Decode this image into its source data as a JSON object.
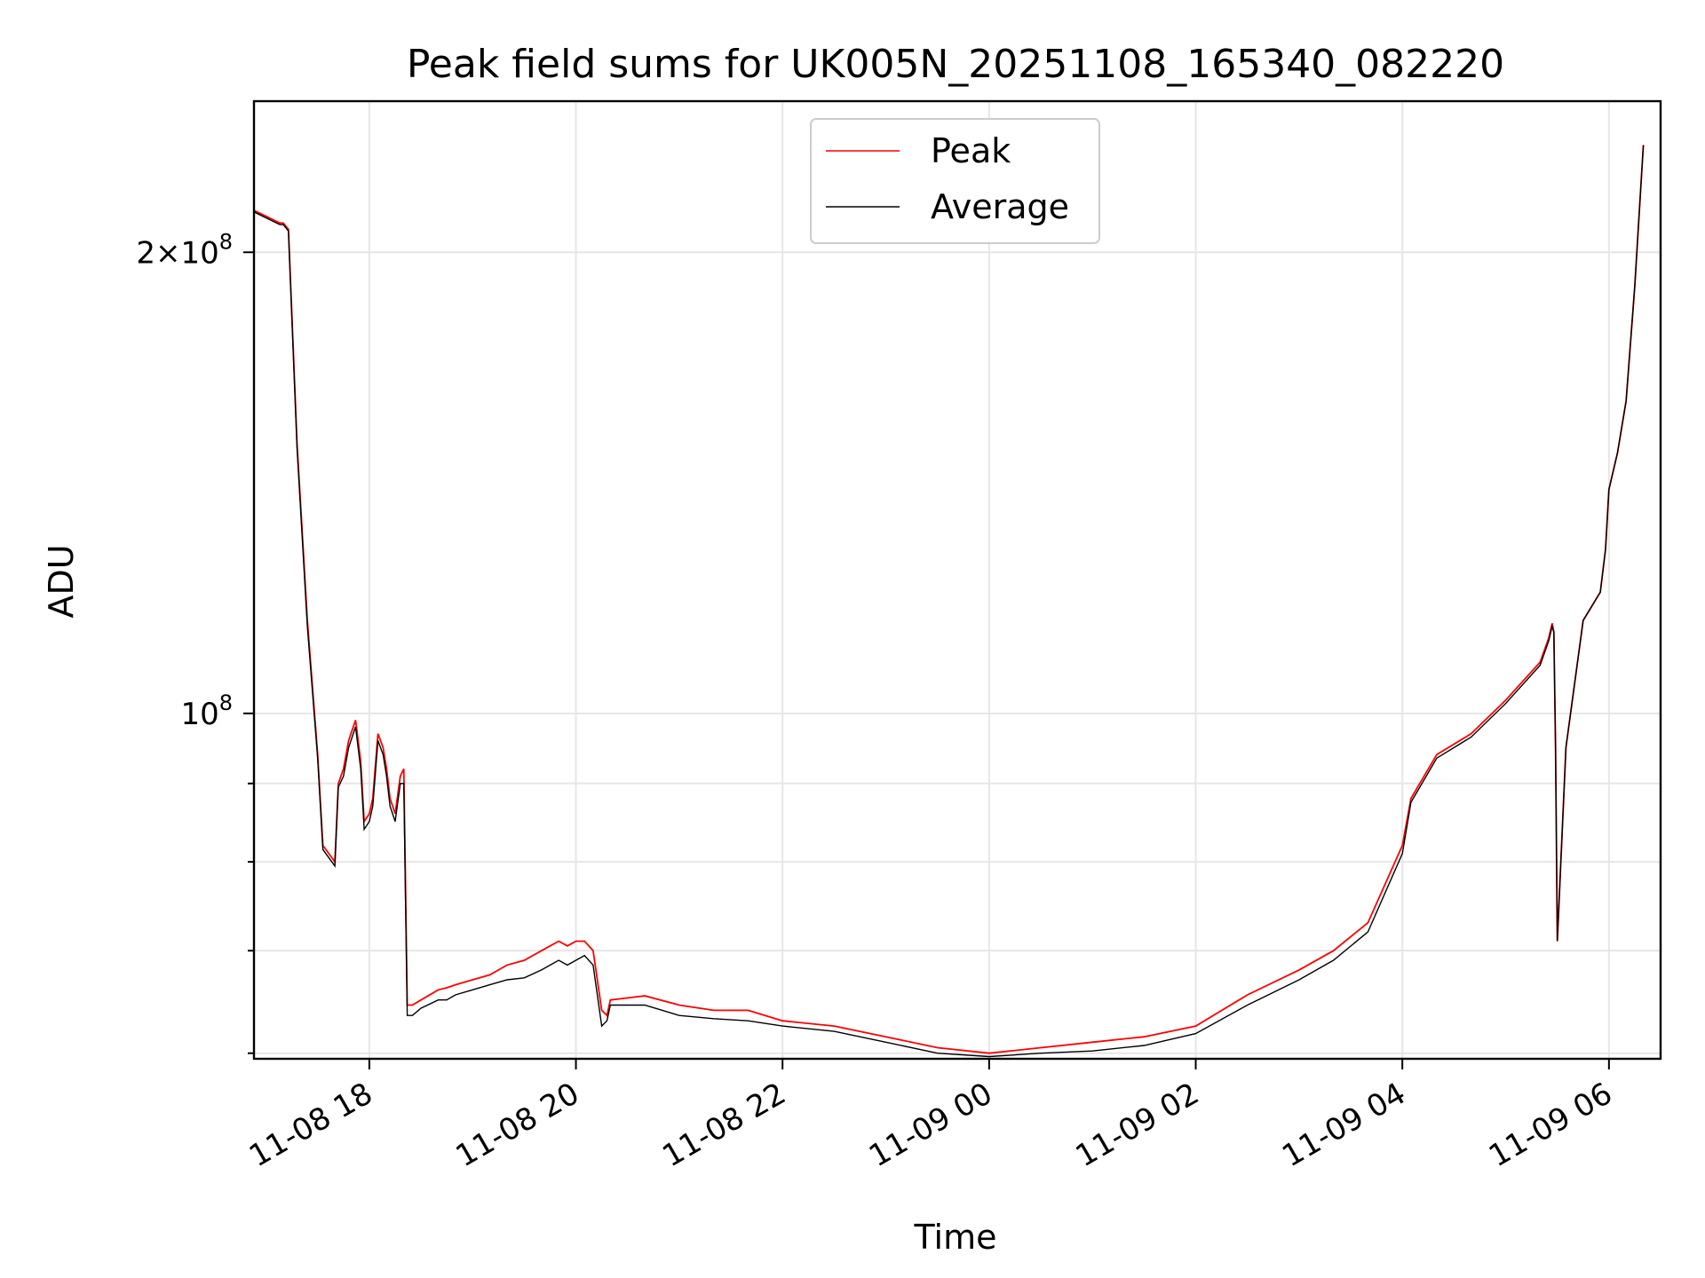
{
  "chart_data": {
    "type": "line",
    "title": "Peak field sums for UK005N_20251108_165340_082220",
    "xlabel": "Time",
    "ylabel": "ADU",
    "yscale": "log",
    "grid": true,
    "legend_position": "top-center",
    "x_range": [
      "2025-11-08T16:53",
      "2025-11-09T06:30"
    ],
    "ylim": [
      59500000,
      251000000
    ],
    "x_ticks": [
      {
        "value": "2025-11-08T18:00",
        "label": "11-08 18"
      },
      {
        "value": "2025-11-08T20:00",
        "label": "11-08 20"
      },
      {
        "value": "2025-11-08T22:00",
        "label": "11-08 22"
      },
      {
        "value": "2025-11-09T00:00",
        "label": "11-09 00"
      },
      {
        "value": "2025-11-09T02:00",
        "label": "11-09 02"
      },
      {
        "value": "2025-11-09T04:00",
        "label": "11-09 04"
      },
      {
        "value": "2025-11-09T06:00",
        "label": "11-09 06"
      }
    ],
    "y_ticks": [
      {
        "value": 200000000,
        "mantissa": "2",
        "times": "×",
        "base": "10",
        "exponent": "8"
      },
      {
        "value": 100000000,
        "mantissa": "",
        "times": "",
        "base": "10",
        "exponent": "8"
      }
    ],
    "y_minor_ticks": [
      60000000,
      70000000,
      80000000,
      90000000
    ],
    "series": [
      {
        "name": "Peak",
        "color": "#ff0000",
        "x": [
          "2025-11-08T16:53",
          "2025-11-08T17:08",
          "2025-11-08T17:10",
          "2025-11-08T17:13",
          "2025-11-08T17:18",
          "2025-11-08T17:24",
          "2025-11-08T17:30",
          "2025-11-08T17:33",
          "2025-11-08T17:40",
          "2025-11-08T17:42",
          "2025-11-08T17:45",
          "2025-11-08T17:48",
          "2025-11-08T17:52",
          "2025-11-08T17:55",
          "2025-11-08T17:57",
          "2025-11-08T18:00",
          "2025-11-08T18:02",
          "2025-11-08T18:05",
          "2025-11-08T18:08",
          "2025-11-08T18:10",
          "2025-11-08T18:12",
          "2025-11-08T18:15",
          "2025-11-08T18:18",
          "2025-11-08T18:20",
          "2025-11-08T18:22",
          "2025-11-08T18:25",
          "2025-11-08T18:30",
          "2025-11-08T18:40",
          "2025-11-08T18:45",
          "2025-11-08T18:50",
          "2025-11-08T19:00",
          "2025-11-08T19:10",
          "2025-11-08T19:20",
          "2025-11-08T19:30",
          "2025-11-08T19:40",
          "2025-11-08T19:45",
          "2025-11-08T19:50",
          "2025-11-08T19:55",
          "2025-11-08T20:00",
          "2025-11-08T20:05",
          "2025-11-08T20:10",
          "2025-11-08T20:15",
          "2025-11-08T20:18",
          "2025-11-08T20:20",
          "2025-11-08T20:30",
          "2025-11-08T20:40",
          "2025-11-08T21:00",
          "2025-11-08T21:20",
          "2025-11-08T21:40",
          "2025-11-08T22:00",
          "2025-11-08T22:30",
          "2025-11-08T23:00",
          "2025-11-08T23:30",
          "2025-11-09T00:00",
          "2025-11-09T00:30",
          "2025-11-09T01:00",
          "2025-11-09T01:30",
          "2025-11-09T02:00",
          "2025-11-09T02:30",
          "2025-11-09T03:00",
          "2025-11-09T03:20",
          "2025-11-09T03:40",
          "2025-11-09T04:00",
          "2025-11-09T04:05",
          "2025-11-09T04:20",
          "2025-11-09T04:40",
          "2025-11-09T05:00",
          "2025-11-09T05:20",
          "2025-11-09T05:25",
          "2025-11-09T05:27",
          "2025-11-09T05:28",
          "2025-11-09T05:29",
          "2025-11-09T05:30",
          "2025-11-09T05:35",
          "2025-11-09T05:45",
          "2025-11-09T05:55",
          "2025-11-09T05:58",
          "2025-11-09T06:00",
          "2025-11-09T06:05",
          "2025-11-09T06:10",
          "2025-11-09T06:15",
          "2025-11-09T06:20"
        ],
        "values": [
          213000000,
          209000000,
          209000000,
          207000000,
          150000000,
          115000000,
          94000000,
          82000000,
          80000000,
          90000000,
          92000000,
          96000000,
          99000000,
          93000000,
          85000000,
          86000000,
          88000000,
          97000000,
          95000000,
          92000000,
          88000000,
          86000000,
          91000000,
          92000000,
          64500000,
          64500000,
          65000000,
          66000000,
          66200000,
          66500000,
          67000000,
          67500000,
          68500000,
          69000000,
          70000000,
          70500000,
          71000000,
          70500000,
          71000000,
          71000000,
          70000000,
          64000000,
          63500000,
          65000000,
          65200000,
          65400000,
          64500000,
          64000000,
          64000000,
          63000000,
          62500000,
          61500000,
          60500000,
          60000000,
          60500000,
          61000000,
          61500000,
          62500000,
          65500000,
          68000000,
          70000000,
          73000000,
          82000000,
          88000000,
          94000000,
          97000000,
          102000000,
          108000000,
          112000000,
          114500000,
          113000000,
          95000000,
          71000000,
          95000000,
          115000000,
          120000000,
          128000000,
          140000000,
          148000000,
          160000000,
          190000000,
          235000000
        ]
      },
      {
        "name": "Average",
        "color": "#000000",
        "x": [
          "2025-11-08T16:53",
          "2025-11-08T17:08",
          "2025-11-08T17:10",
          "2025-11-08T17:13",
          "2025-11-08T17:18",
          "2025-11-08T17:24",
          "2025-11-08T17:30",
          "2025-11-08T17:33",
          "2025-11-08T17:40",
          "2025-11-08T17:42",
          "2025-11-08T17:45",
          "2025-11-08T17:48",
          "2025-11-08T17:52",
          "2025-11-08T17:55",
          "2025-11-08T17:57",
          "2025-11-08T18:00",
          "2025-11-08T18:02",
          "2025-11-08T18:05",
          "2025-11-08T18:08",
          "2025-11-08T18:10",
          "2025-11-08T18:12",
          "2025-11-08T18:15",
          "2025-11-08T18:18",
          "2025-11-08T18:20",
          "2025-11-08T18:22",
          "2025-11-08T18:25",
          "2025-11-08T18:30",
          "2025-11-08T18:40",
          "2025-11-08T18:45",
          "2025-11-08T18:50",
          "2025-11-08T19:00",
          "2025-11-08T19:10",
          "2025-11-08T19:20",
          "2025-11-08T19:30",
          "2025-11-08T19:40",
          "2025-11-08T19:45",
          "2025-11-08T19:50",
          "2025-11-08T19:55",
          "2025-11-08T20:00",
          "2025-11-08T20:05",
          "2025-11-08T20:10",
          "2025-11-08T20:15",
          "2025-11-08T20:18",
          "2025-11-08T20:20",
          "2025-11-08T20:30",
          "2025-11-08T20:40",
          "2025-11-08T21:00",
          "2025-11-08T21:20",
          "2025-11-08T21:40",
          "2025-11-08T22:00",
          "2025-11-08T22:30",
          "2025-11-08T23:00",
          "2025-11-08T23:30",
          "2025-11-09T00:00",
          "2025-11-09T00:30",
          "2025-11-09T01:00",
          "2025-11-09T01:30",
          "2025-11-09T02:00",
          "2025-11-09T02:30",
          "2025-11-09T03:00",
          "2025-11-09T03:20",
          "2025-11-09T03:40",
          "2025-11-09T04:00",
          "2025-11-09T04:05",
          "2025-11-09T04:20",
          "2025-11-09T04:40",
          "2025-11-09T05:00",
          "2025-11-09T05:20",
          "2025-11-09T05:25",
          "2025-11-09T05:27",
          "2025-11-09T05:28",
          "2025-11-09T05:29",
          "2025-11-09T05:30",
          "2025-11-09T05:35",
          "2025-11-09T05:45",
          "2025-11-09T05:55",
          "2025-11-09T05:58",
          "2025-11-09T06:00",
          "2025-11-09T06:05",
          "2025-11-09T06:10",
          "2025-11-09T06:15",
          "2025-11-09T06:20"
        ],
        "values": [
          212500000,
          208500000,
          208500000,
          206500000,
          149000000,
          114000000,
          93500000,
          81500000,
          79500000,
          89500000,
          91000000,
          95000000,
          98000000,
          92000000,
          84000000,
          85000000,
          87000000,
          96000000,
          94000000,
          91000000,
          87000000,
          85000000,
          90000000,
          90000000,
          63500000,
          63500000,
          64200000,
          65000000,
          65000000,
          65500000,
          66000000,
          66500000,
          67000000,
          67200000,
          68000000,
          68500000,
          69000000,
          68500000,
          69000000,
          69500000,
          68500000,
          62500000,
          63000000,
          64500000,
          64500000,
          64500000,
          63500000,
          63200000,
          63000000,
          62500000,
          62000000,
          61000000,
          60000000,
          59700000,
          60000000,
          60200000,
          60700000,
          61800000,
          64500000,
          67000000,
          69000000,
          72000000,
          81000000,
          87500000,
          93500000,
          96500000,
          101500000,
          107500000,
          111500000,
          114000000,
          113000000,
          95000000,
          71000000,
          95000000,
          115000000,
          120000000,
          128000000,
          140000000,
          148000000,
          160000000,
          190000000,
          235000000
        ]
      }
    ]
  }
}
